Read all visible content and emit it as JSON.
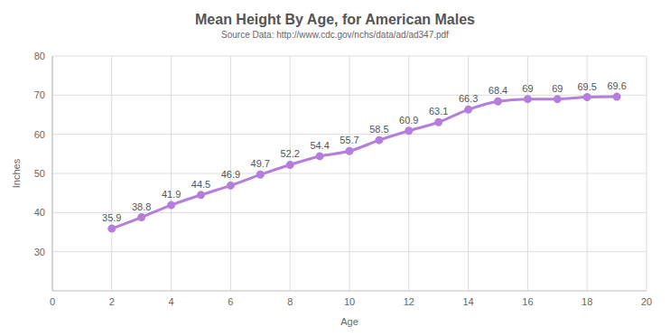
{
  "chart_data": {
    "type": "line",
    "title": "Mean Height By Age, for American Males",
    "subtitle": "Source Data: http://www.cdc.gov/nchs/data/ad/ad347.pdf",
    "x_label": "Age",
    "y_label": "Inches",
    "x": [
      2,
      3,
      4,
      5,
      6,
      7,
      8,
      9,
      10,
      11,
      12,
      13,
      14,
      15,
      16,
      17,
      18,
      19
    ],
    "values": [
      35.9,
      38.8,
      41.9,
      44.5,
      46.9,
      49.7,
      52.2,
      54.4,
      55.7,
      58.5,
      60.9,
      63.1,
      66.3,
      68.4,
      69,
      69,
      69.5,
      69.6
    ],
    "color": "#b57edc",
    "marker": "circle",
    "xlim": [
      0,
      20
    ],
    "xticks": [
      0,
      2,
      4,
      6,
      8,
      10,
      12,
      14,
      16,
      18,
      20
    ],
    "ylim": [
      20,
      80
    ],
    "yticks": [
      30,
      40,
      50,
      60,
      70,
      80
    ],
    "grid": true,
    "data_labels": true
  }
}
